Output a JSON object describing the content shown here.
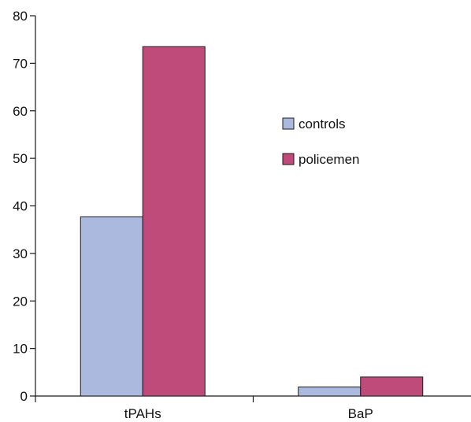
{
  "chart_data": {
    "type": "bar",
    "categories": [
      "tPAHs",
      "BaP"
    ],
    "series": [
      {
        "name": "controls",
        "values": [
          37.7,
          1.9
        ],
        "color": "#aab9dd"
      },
      {
        "name": "policemen",
        "values": [
          73.5,
          4.0
        ],
        "color": "#bf4b7b"
      }
    ],
    "ylim": [
      0,
      80
    ],
    "yticks": [
      0,
      10,
      20,
      30,
      40,
      50,
      60,
      70,
      80
    ],
    "title": "",
    "xlabel": "",
    "ylabel": "",
    "grid": false,
    "legend_position": "right"
  }
}
